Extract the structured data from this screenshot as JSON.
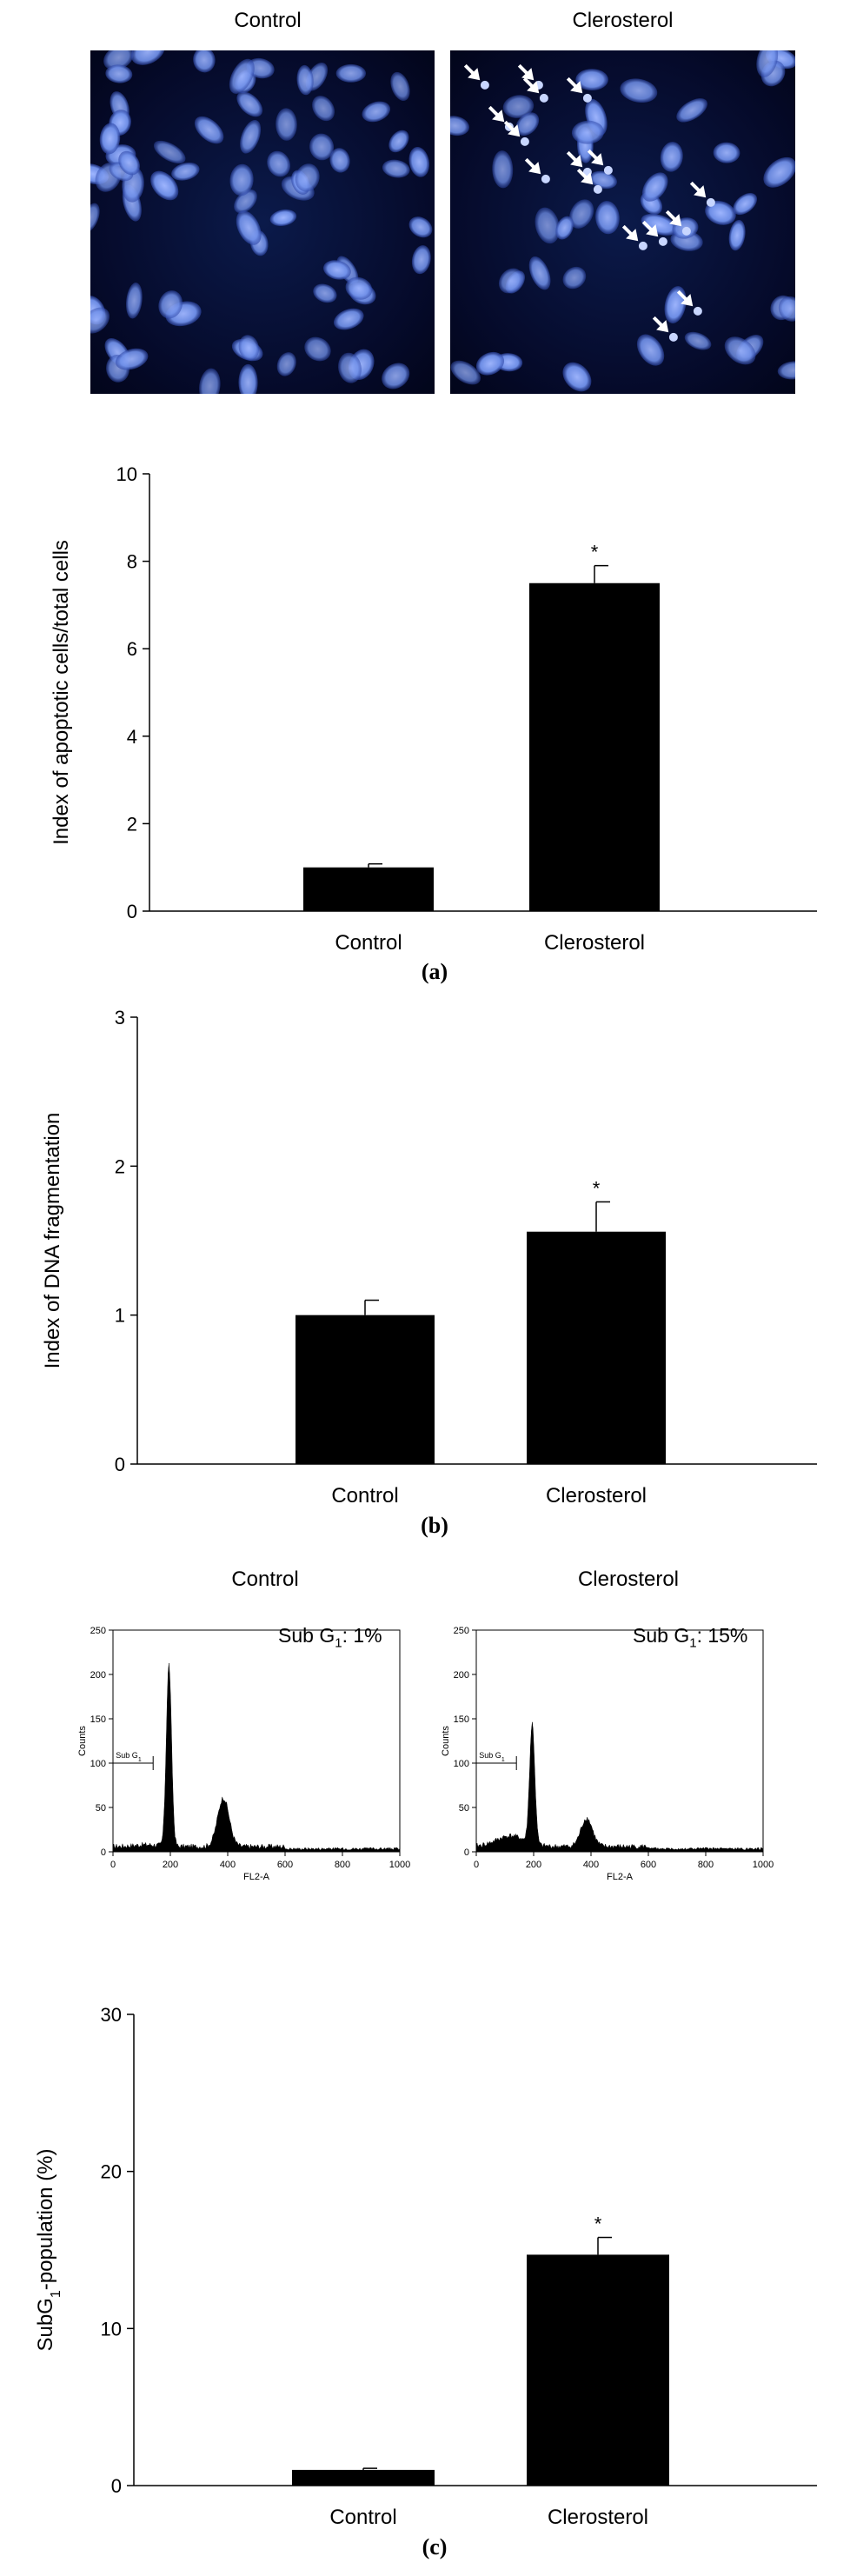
{
  "micrographs": {
    "titles": [
      "Control",
      "Clerosterol"
    ],
    "arrow_icon": "white-arrow-icon",
    "colors": {
      "nucleus": "#6f8fe8",
      "background": "#040a30",
      "arrow": "#ffffff"
    }
  },
  "flow": {
    "titles": [
      "Control",
      "Clerosterol"
    ],
    "annotations": [
      {
        "prefix": "Sub G",
        "sub": "1",
        "suffix": ": 1%"
      },
      {
        "prefix": "Sub G",
        "sub": "1",
        "suffix": ": 15%"
      }
    ],
    "ylabel": "Counts",
    "xlabel": "FL2-A",
    "gate_label": "Sub G",
    "gate_sub": "1",
    "xticks": [
      "0",
      "200",
      "400",
      "600",
      "800",
      "1000"
    ],
    "yticks": [
      "0",
      "50",
      "100",
      "150",
      "200",
      "250"
    ]
  },
  "panel_labels": [
    "(a)",
    "(b)",
    "(c)"
  ],
  "chart_data": [
    {
      "type": "bar",
      "categories": [
        "Control",
        "Clerosterol"
      ],
      "values": [
        1.0,
        7.5
      ],
      "errors": [
        0.08,
        0.4
      ],
      "significance": [
        "",
        "*"
      ],
      "ylabel": "Index of apoptotic cells/total cells",
      "ylim": [
        0,
        10
      ],
      "yticks": [
        "0",
        "2",
        "4",
        "6",
        "8",
        "10"
      ]
    },
    {
      "type": "bar",
      "categories": [
        "Control",
        "Clerosterol"
      ],
      "values": [
        1.0,
        1.56
      ],
      "errors": [
        0.1,
        0.2
      ],
      "significance": [
        "",
        "*"
      ],
      "ylabel": "Index of DNA fragmentation",
      "ylim": [
        0,
        3
      ],
      "yticks": [
        "0",
        "1",
        "2",
        "3"
      ]
    },
    {
      "type": "bar",
      "categories": [
        "Control",
        "Clerosterol"
      ],
      "values": [
        1.0,
        14.7
      ],
      "errors": [
        0.1,
        1.1
      ],
      "significance": [
        "",
        "*"
      ],
      "ylabel_prefix": "SubG",
      "ylabel_sub": "1",
      "ylabel_suffix": "-population (%)",
      "ylim": [
        0,
        30
      ],
      "yticks": [
        "0",
        "10",
        "20",
        "30"
      ]
    }
  ]
}
